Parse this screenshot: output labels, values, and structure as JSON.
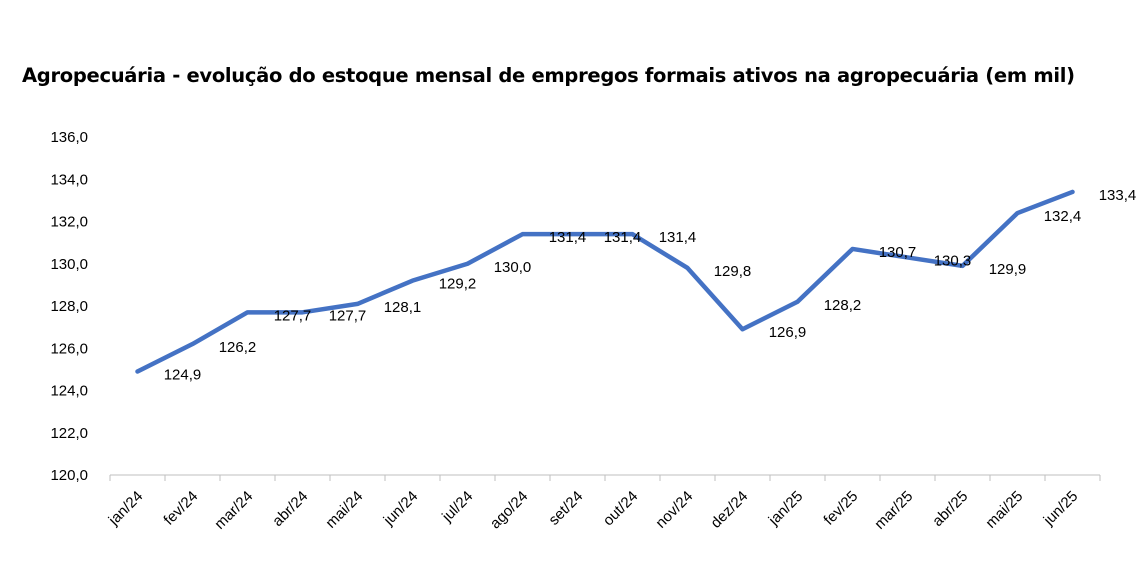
{
  "chart_data": {
    "type": "line",
    "title": "Agropecuária - evolução do estoque mensal de empregos formais ativos na agropecuária (em mil)",
    "xlabel": "",
    "ylabel": "",
    "categories": [
      "jan/24",
      "fev/24",
      "mar/24",
      "abr/24",
      "mai/24",
      "jun/24",
      "jul/24",
      "ago/24",
      "set/24",
      "out/24",
      "nov/24",
      "dez/24",
      "jan/25",
      "fev/25",
      "mar/25",
      "abr/25",
      "mai/25",
      "jun/25"
    ],
    "series": [
      {
        "values": [
          124.9,
          126.2,
          127.7,
          127.7,
          128.1,
          129.2,
          130.0,
          131.4,
          131.4,
          131.4,
          129.8,
          126.9,
          128.2,
          130.7,
          130.3,
          129.9,
          132.4,
          133.4
        ],
        "data_labels": [
          "124,9",
          "126,2",
          "127,7",
          "127,7",
          "128,1",
          "129,2",
          "130,0",
          "131,4",
          "131,4",
          "131,4",
          "129,8",
          "126,9",
          "128,2",
          "130,7",
          "130,3",
          "129,9",
          "132,4",
          "133,4"
        ]
      }
    ],
    "ylim": [
      120,
      136
    ],
    "yticks": [
      "120,0",
      "122,0",
      "124,0",
      "126,0",
      "128,0",
      "130,0",
      "132,0",
      "134,0",
      "136,0"
    ],
    "grid": false,
    "legend": "none",
    "line_color": "#4472C4"
  }
}
